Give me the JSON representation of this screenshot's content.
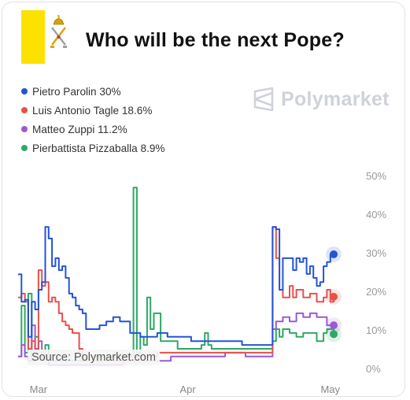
{
  "header": {
    "title": "Who will be the next Pope?",
    "flag_colors": [
      "#fde100",
      "#ffffff"
    ]
  },
  "brand": {
    "name": "Polymarket",
    "color": "#cfd2d8"
  },
  "source": "Source: Polymarket.com",
  "chart_data": {
    "type": "line",
    "title": "Who will be the next Pope?",
    "ylim": [
      0,
      50
    ],
    "y_ticks": [
      "50%",
      "40%",
      "30%",
      "20%",
      "10%",
      "0%"
    ],
    "x_ticks": [
      "Mar",
      "Apr",
      "May"
    ],
    "grid": false,
    "legend": "top-left",
    "series": [
      {
        "name": "Pietro Parolin 30%",
        "color": "#2453d8",
        "points": [
          [
            0,
            24.4
          ],
          [
            1,
            17.3
          ],
          [
            2,
            17.8
          ],
          [
            3,
            8.2
          ],
          [
            4,
            17.3
          ],
          [
            5,
            15.3
          ],
          [
            6,
            20.4
          ],
          [
            7,
            22.4
          ],
          [
            8,
            36.7
          ],
          [
            9,
            33.7
          ],
          [
            10,
            26.5
          ],
          [
            11,
            28.6
          ],
          [
            12,
            25.5
          ],
          [
            13,
            26.5
          ],
          [
            14,
            23.5
          ],
          [
            15,
            19.4
          ],
          [
            16,
            18.4
          ],
          [
            17,
            16.3
          ],
          [
            18,
            15.3
          ],
          [
            19,
            14.3
          ],
          [
            20,
            10.2
          ],
          [
            22,
            10.2
          ],
          [
            24,
            11.2
          ],
          [
            26,
            12.2
          ],
          [
            28,
            13.3
          ],
          [
            30,
            12.2
          ],
          [
            32,
            12.2
          ],
          [
            33,
            9.2
          ],
          [
            35,
            9.2
          ],
          [
            36,
            8.2
          ],
          [
            40,
            8.2
          ],
          [
            41,
            9.2
          ],
          [
            43,
            9.2
          ],
          [
            44,
            8.2
          ],
          [
            50,
            8.2
          ],
          [
            51,
            7.1
          ],
          [
            65,
            7.1
          ],
          [
            66,
            6.1
          ],
          [
            73,
            6.1
          ],
          [
            74,
            6.1
          ],
          [
            75,
            36.7
          ],
          [
            76,
            36.1
          ],
          [
            77,
            20.4
          ],
          [
            78,
            28.6
          ],
          [
            80,
            28.6
          ],
          [
            81,
            25.5
          ],
          [
            82,
            28.6
          ],
          [
            83,
            27.6
          ],
          [
            84,
            28.6
          ],
          [
            85,
            24.5
          ],
          [
            86,
            26.5
          ],
          [
            87,
            23.5
          ],
          [
            88,
            21.4
          ],
          [
            89,
            22.4
          ],
          [
            90,
            26.5
          ],
          [
            91,
            27.6
          ],
          [
            92,
            29.6
          ],
          [
            93,
            29.6
          ]
        ]
      },
      {
        "name": "Luis Antonio Tagle 18.6%",
        "color": "#e8504a",
        "points": [
          [
            0,
            18.4
          ],
          [
            1,
            19.4
          ],
          [
            2,
            17.3
          ],
          [
            3,
            5.1
          ],
          [
            4,
            7.1
          ],
          [
            5,
            3.1
          ],
          [
            6,
            25.5
          ],
          [
            7,
            21.4
          ],
          [
            8,
            22.4
          ],
          [
            9,
            17.3
          ],
          [
            10,
            18.4
          ],
          [
            11,
            17.3
          ],
          [
            12,
            14.3
          ],
          [
            13,
            12.2
          ],
          [
            14,
            11.2
          ],
          [
            15,
            10.2
          ],
          [
            16,
            9.2
          ],
          [
            17,
            9.2
          ],
          [
            18,
            5.1
          ],
          [
            19,
            2.0
          ],
          [
            20,
            2.0
          ],
          [
            30,
            2.0
          ],
          [
            31,
            3.1
          ],
          [
            40,
            3.1
          ],
          [
            41,
            4.1
          ],
          [
            74,
            4.1
          ],
          [
            75,
            36.7
          ],
          [
            76,
            28.6
          ],
          [
            77,
            20.4
          ],
          [
            78,
            18.4
          ],
          [
            80,
            21.4
          ],
          [
            81,
            18.4
          ],
          [
            82,
            20.4
          ],
          [
            84,
            18.4
          ],
          [
            86,
            19.4
          ],
          [
            88,
            17.3
          ],
          [
            90,
            18.4
          ],
          [
            91,
            20.4
          ],
          [
            92,
            17.3
          ],
          [
            93,
            18.6
          ]
        ]
      },
      {
        "name": "Matteo Zuppi 11.2%",
        "color": "#9b59d6",
        "points": [
          [
            0,
            3.1
          ],
          [
            1,
            6.1
          ],
          [
            2,
            3.1
          ],
          [
            3,
            2.0
          ],
          [
            4,
            11.2
          ],
          [
            5,
            5.1
          ],
          [
            6,
            7.1
          ],
          [
            7,
            2.0
          ],
          [
            8,
            3.1
          ],
          [
            9,
            1.0
          ],
          [
            30,
            1.0
          ],
          [
            31,
            2.0
          ],
          [
            44,
            2.0
          ],
          [
            45,
            3.1
          ],
          [
            60,
            3.1
          ],
          [
            61,
            4.1
          ],
          [
            66,
            4.1
          ],
          [
            67,
            3.1
          ],
          [
            74,
            3.1
          ],
          [
            75,
            10.2
          ],
          [
            76,
            12.2
          ],
          [
            78,
            13.3
          ],
          [
            80,
            12.2
          ],
          [
            82,
            14.3
          ],
          [
            84,
            13.3
          ],
          [
            86,
            14.3
          ],
          [
            88,
            13.3
          ],
          [
            90,
            13.3
          ],
          [
            91,
            11.2
          ],
          [
            93,
            11.2
          ]
        ]
      },
      {
        "name": "Pierbattista Pizzaballa 8.9%",
        "color": "#2ea865",
        "points": [
          [
            0,
            3.1
          ],
          [
            1,
            16.3
          ],
          [
            2,
            4.1
          ],
          [
            3,
            19.4
          ],
          [
            4,
            2.0
          ],
          [
            5,
            8.2
          ],
          [
            6,
            3.1
          ],
          [
            8,
            6.1
          ],
          [
            9,
            2.0
          ],
          [
            20,
            2.0
          ],
          [
            21,
            3.1
          ],
          [
            33,
            3.1
          ],
          [
            34,
            46.9
          ],
          [
            35,
            4.1
          ],
          [
            36,
            8.2
          ],
          [
            37,
            6.1
          ],
          [
            38,
            18.4
          ],
          [
            39,
            10.2
          ],
          [
            40,
            14.3
          ],
          [
            41,
            14.3
          ],
          [
            42,
            7.1
          ],
          [
            46,
            7.1
          ],
          [
            47,
            5.1
          ],
          [
            53,
            5.1
          ],
          [
            54,
            6.1
          ],
          [
            55,
            9.2
          ],
          [
            56,
            6.1
          ],
          [
            57,
            5.1
          ],
          [
            73,
            5.1
          ],
          [
            74,
            5.1
          ],
          [
            75,
            7.1
          ],
          [
            76,
            10.2
          ],
          [
            77,
            8.2
          ],
          [
            78,
            10.2
          ],
          [
            80,
            9.2
          ],
          [
            82,
            8.2
          ],
          [
            84,
            9.2
          ],
          [
            86,
            9.2
          ],
          [
            88,
            7.1
          ],
          [
            90,
            9.2
          ],
          [
            91,
            10.2
          ],
          [
            93,
            8.9
          ]
        ]
      }
    ]
  }
}
